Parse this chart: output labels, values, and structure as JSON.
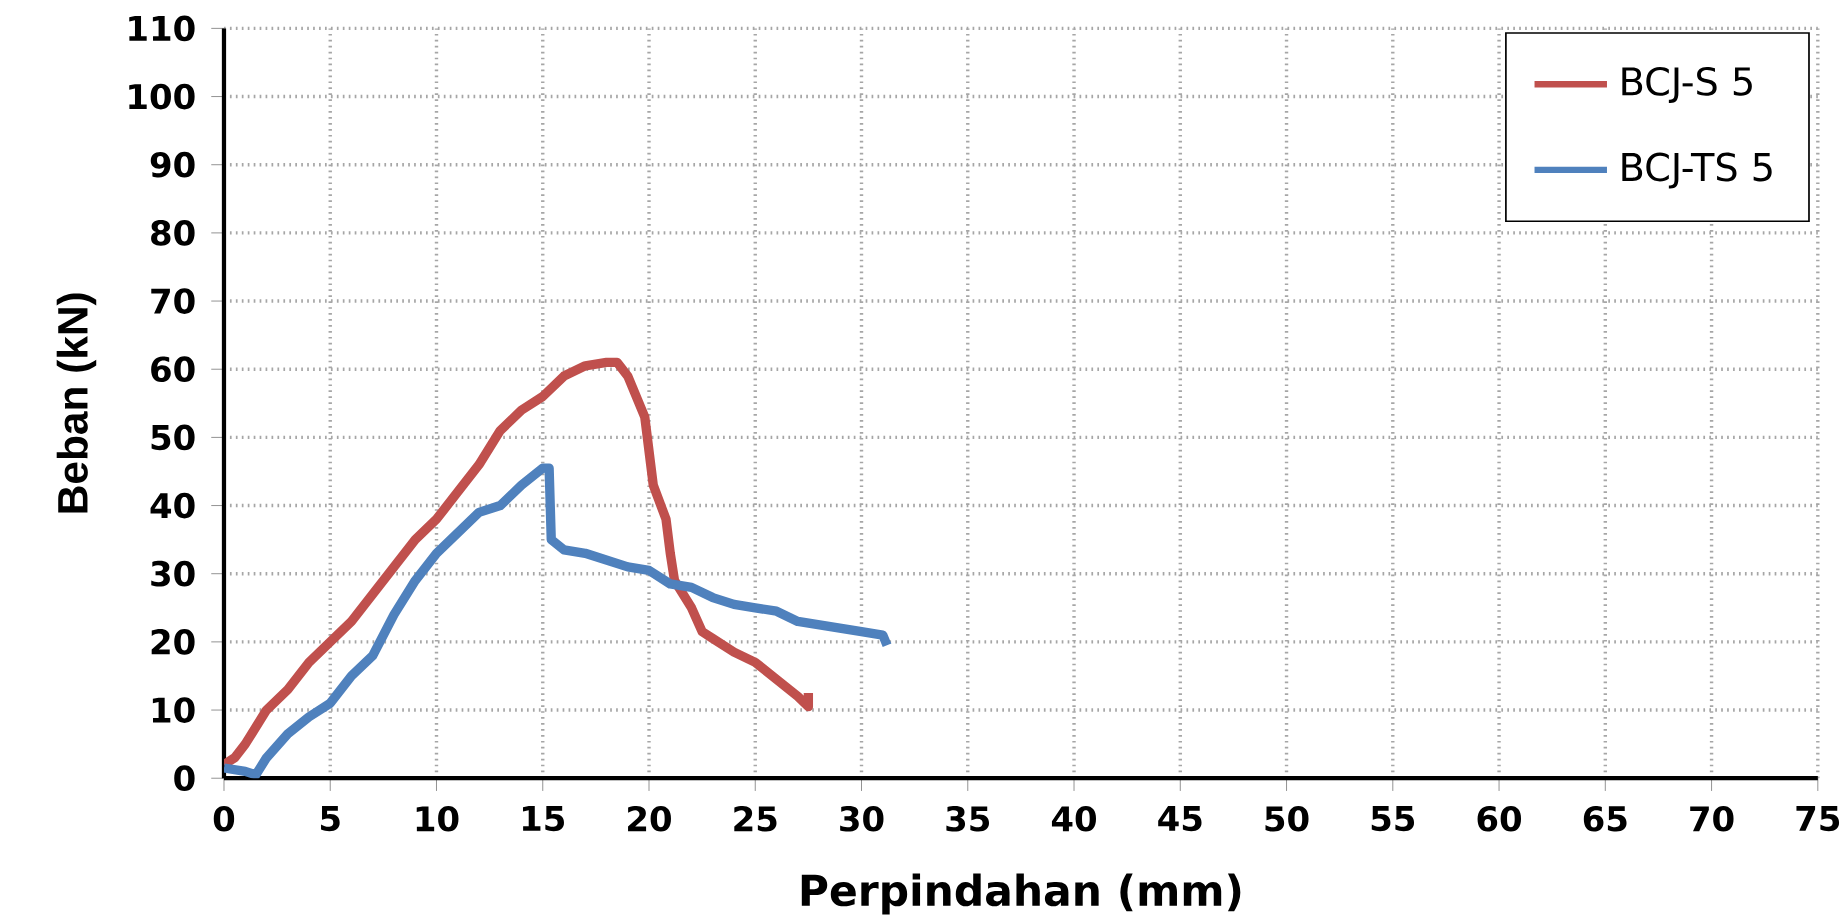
{
  "chart_data": {
    "type": "line",
    "xlabel": "Perpindahan (mm)",
    "ylabel": "Beban (kN)",
    "xlim": [
      0,
      75
    ],
    "xticks": [
      0,
      5,
      10,
      15,
      20,
      25,
      30,
      35,
      40,
      45,
      50,
      55,
      60,
      65,
      70,
      75
    ],
    "ylim": [
      0,
      110
    ],
    "yticks": [
      0,
      10,
      20,
      30,
      40,
      50,
      60,
      70,
      80,
      90,
      100,
      110
    ],
    "grid": true,
    "legend": "top right",
    "marker": "none",
    "line_style": "solid",
    "series": [
      {
        "name": "BCJ-S 5",
        "color": "#c0504d",
        "x": [
          0,
          0.5,
          1,
          2,
          3,
          4,
          5,
          6,
          7,
          8,
          9,
          10,
          11,
          12,
          13,
          14,
          15,
          16,
          17,
          18,
          18.5,
          19,
          19.8,
          20.2,
          20.8,
          21,
          21.2,
          22,
          22.5,
          23,
          24,
          25,
          26,
          27,
          27.5,
          27.5
        ],
        "values": [
          2,
          3,
          5,
          10,
          13,
          17,
          20,
          23,
          27,
          31,
          35,
          38,
          42,
          46,
          51,
          54,
          56,
          59,
          60.5,
          61,
          61,
          59,
          53,
          43,
          38,
          33,
          29,
          25,
          21.5,
          20.5,
          18.5,
          17,
          14.5,
          12,
          10.5,
          12.5
        ]
      },
      {
        "name": "BCJ-TS 5",
        "color": "#4f81bd",
        "x": [
          0,
          1,
          1.5,
          2,
          3,
          4,
          5,
          6,
          7,
          8,
          9,
          10,
          11,
          12,
          13,
          14,
          15,
          15.3,
          15.4,
          16,
          17,
          18,
          19,
          20,
          21,
          22,
          23,
          24,
          25,
          26,
          27,
          28,
          29,
          30,
          31,
          31.2
        ],
        "values": [
          1.5,
          1,
          0.5,
          3,
          6.5,
          9,
          11,
          15,
          18,
          24,
          29,
          33,
          36,
          39,
          40,
          43,
          45.5,
          45.5,
          35,
          33.5,
          33,
          32,
          31,
          30.5,
          28.5,
          28,
          26.5,
          25.5,
          25,
          24.5,
          23,
          22.5,
          22,
          21.5,
          21,
          19.5
        ]
      }
    ]
  }
}
